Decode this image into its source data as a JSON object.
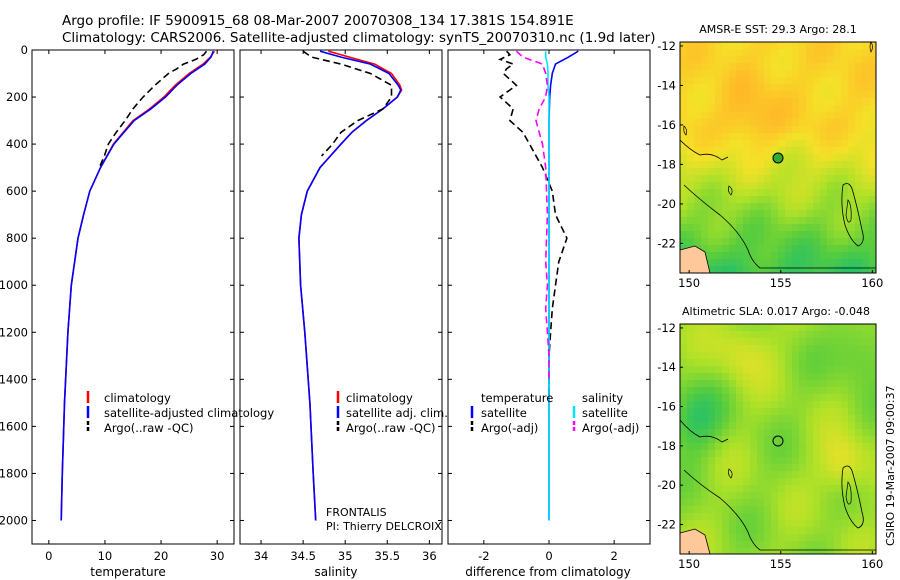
{
  "header": {
    "line1": "Argo profile: IF 5900915_68 08-Mar-2007 20070308_134 17.381S 154.891E",
    "line2": "Climatology: CARS2006. Satellite-adjusted climatology: synTS_20070310.nc (1.9d later)"
  },
  "colors": {
    "climatology": "#ff0000",
    "satellite": "#0000ff",
    "argo": "#000000",
    "sat_salinity": "#00e5ff",
    "argo_salinity": "#ff00ff"
  },
  "chart_data": [
    {
      "type": "line",
      "name": "temperature-profile",
      "xlabel": "temperature",
      "ylabel": "",
      "xlim": [
        -3,
        33
      ],
      "ylim": [
        2100,
        0
      ],
      "xticks": [
        0,
        10,
        20,
        30
      ],
      "yticks": [
        0,
        200,
        400,
        600,
        800,
        1000,
        1200,
        1400,
        1600,
        1800,
        2000
      ],
      "legend": [
        "climatology",
        "satellite-adjusted climatology",
        "Argo(..raw -QC)"
      ],
      "series": [
        {
          "name": "climatology",
          "color": "#ff0000",
          "dash": "",
          "depth": [
            5,
            30,
            60,
            100,
            150,
            200,
            250,
            300,
            400,
            500,
            600,
            700,
            800,
            1000,
            1200,
            1500,
            1800,
            2000
          ],
          "values": [
            29.5,
            28.8,
            27.5,
            25.0,
            22.5,
            20.5,
            18.0,
            15.0,
            11.5,
            9.2,
            7.3,
            6.2,
            5.2,
            4.0,
            3.4,
            2.8,
            2.4,
            2.2
          ]
        },
        {
          "name": "satellite-adjusted climatology",
          "color": "#0000ff",
          "dash": "",
          "depth": [
            5,
            30,
            60,
            100,
            150,
            200,
            250,
            300,
            400,
            500,
            600,
            700,
            800,
            1000,
            1200,
            1500,
            1800,
            2000
          ],
          "values": [
            29.3,
            28.9,
            27.8,
            25.3,
            22.8,
            20.8,
            18.2,
            15.2,
            11.6,
            9.2,
            7.3,
            6.2,
            5.2,
            4.0,
            3.4,
            2.8,
            2.4,
            2.2
          ]
        },
        {
          "name": "Argo(..raw -QC)",
          "color": "#000000",
          "dash": "7,4",
          "depth": [
            5,
            20,
            40,
            60,
            80,
            100,
            150,
            200,
            250,
            300,
            350,
            400,
            450,
            500
          ],
          "values": [
            28.1,
            27.6,
            26.2,
            24.0,
            22.8,
            21.3,
            18.9,
            16.8,
            15.0,
            13.6,
            12.0,
            10.6,
            9.9,
            9.0
          ]
        }
      ]
    },
    {
      "type": "line",
      "name": "salinity-profile",
      "xlabel": "salinity",
      "ylabel": "",
      "xlim": [
        33.75,
        36.15
      ],
      "ylim": [
        2100,
        0
      ],
      "xticks": [
        34,
        34.5,
        35,
        35.5,
        36
      ],
      "legend": [
        "climatology",
        "satellite adj. clim.",
        "Argo(..raw -QC)"
      ],
      "series": [
        {
          "name": "climatology",
          "color": "#ff0000",
          "dash": "",
          "depth": [
            5,
            30,
            60,
            100,
            150,
            170,
            200,
            250,
            300,
            350,
            400,
            500,
            600,
            700,
            800,
            1000,
            1200,
            1500,
            1800,
            2000
          ],
          "values": [
            34.8,
            35.05,
            35.35,
            35.55,
            35.65,
            35.67,
            35.62,
            35.45,
            35.25,
            35.08,
            34.95,
            34.7,
            34.55,
            34.48,
            34.45,
            34.47,
            34.52,
            34.58,
            34.62,
            34.65
          ]
        },
        {
          "name": "satellite adj. clim.",
          "color": "#0000ff",
          "dash": "",
          "depth": [
            5,
            30,
            60,
            100,
            150,
            170,
            200,
            250,
            300,
            350,
            400,
            500,
            600,
            700,
            800,
            1000,
            1200,
            1500,
            1800,
            2000
          ],
          "values": [
            34.7,
            34.95,
            35.3,
            35.52,
            35.63,
            35.66,
            35.62,
            35.45,
            35.25,
            35.08,
            34.95,
            34.7,
            34.55,
            34.48,
            34.45,
            34.47,
            34.52,
            34.58,
            34.62,
            34.65
          ]
        },
        {
          "name": "Argo(..raw -QC)",
          "color": "#000000",
          "dash": "7,4",
          "depth": [
            5,
            30,
            60,
            100,
            150,
            200,
            250,
            300,
            350,
            400,
            450
          ],
          "values": [
            34.5,
            34.6,
            34.95,
            35.3,
            35.55,
            35.55,
            35.45,
            35.15,
            34.95,
            34.85,
            34.72
          ]
        }
      ],
      "annotation": [
        "FRONTALIS",
        "PI: Thierry DELCROIX"
      ]
    },
    {
      "type": "line",
      "name": "difference-profile",
      "xlabel": "difference from climatology",
      "ylabel": "",
      "xlim": [
        -3.1,
        3.1
      ],
      "ylim": [
        2100,
        0
      ],
      "xticks": [
        -2,
        0,
        2
      ],
      "legend_temperature": {
        "title": "temperature",
        "entries": [
          "satellite",
          "Argo(-adj)"
        ]
      },
      "legend_salinity": {
        "title": "salinity",
        "entries": [
          "satellite",
          "Argo(-adj)"
        ]
      },
      "series": [
        {
          "name": "temperature satellite",
          "color": "#0000ff",
          "dash": "",
          "depth": [
            5,
            30,
            60,
            100,
            150,
            200,
            300,
            400,
            600,
            2000
          ],
          "values": [
            0.9,
            0.6,
            0.2,
            0.1,
            0.05,
            0.02,
            0.0,
            0.0,
            0.0,
            0.0
          ]
        },
        {
          "name": "temperature Argo(-adj)",
          "color": "#000000",
          "dash": "7,4",
          "depth": [
            5,
            20,
            40,
            60,
            80,
            100,
            150,
            200,
            250,
            300,
            350,
            400,
            500,
            600,
            700,
            800,
            900,
            1000,
            1100,
            1200,
            1300,
            1400,
            1500
          ],
          "values": [
            -1.3,
            -1.2,
            -1.5,
            -1.1,
            -1.3,
            -1.4,
            -1.0,
            -1.5,
            -1.1,
            -1.2,
            -0.8,
            -0.6,
            -0.2,
            0.1,
            0.2,
            0.55,
            0.3,
            0.2,
            0.1,
            0.05,
            0.0,
            0.0,
            0.0
          ]
        },
        {
          "name": "salinity satellite",
          "color": "#00e5ff",
          "dash": "",
          "depth": [
            5,
            30,
            60,
            100,
            150,
            200,
            300,
            400,
            2000
          ],
          "values": [
            -0.1,
            -0.1,
            -0.05,
            -0.03,
            -0.03,
            0.0,
            0.0,
            0.0,
            0.0
          ]
        },
        {
          "name": "salinity Argo(-adj)",
          "color": "#ff00ff",
          "dash": "7,4",
          "depth": [
            5,
            30,
            60,
            100,
            150,
            200,
            250,
            300,
            350,
            400,
            500,
            700,
            900,
            1000,
            1100,
            1200,
            1300,
            1400
          ],
          "values": [
            -1.0,
            -0.8,
            -0.2,
            -0.1,
            -0.05,
            -0.1,
            -0.3,
            -0.4,
            -0.3,
            -0.2,
            -0.1,
            -0.05,
            -0.1,
            -0.05,
            -0.1,
            -0.05,
            0.0,
            0.0
          ]
        }
      ]
    },
    {
      "type": "heatmap",
      "name": "sst-map",
      "title": "AMSR-E SST: 29.3  Argo: 28.1",
      "xlim": [
        149.5,
        160.2
      ],
      "ylim": [
        -23.5,
        -11.8
      ],
      "xticks": [
        150,
        155,
        160
      ],
      "yticks": [
        -12,
        -14,
        -16,
        -18,
        -20,
        -22
      ],
      "argo_position": {
        "lon": 154.891,
        "lat": -17.381
      }
    },
    {
      "type": "heatmap",
      "name": "sla-map",
      "title": "Altimetric SLA: 0.017  Argo: -0.048",
      "xlim": [
        149.5,
        160.2
      ],
      "ylim": [
        -23.5,
        -11.8
      ],
      "xticks": [
        150,
        155,
        160
      ],
      "yticks": [
        -12,
        -14,
        -16,
        -18,
        -20,
        -22
      ],
      "argo_position": {
        "lon": 154.891,
        "lat": -17.381
      }
    }
  ],
  "credit": "CSIRO 19-Mar-2007 09:00:37"
}
